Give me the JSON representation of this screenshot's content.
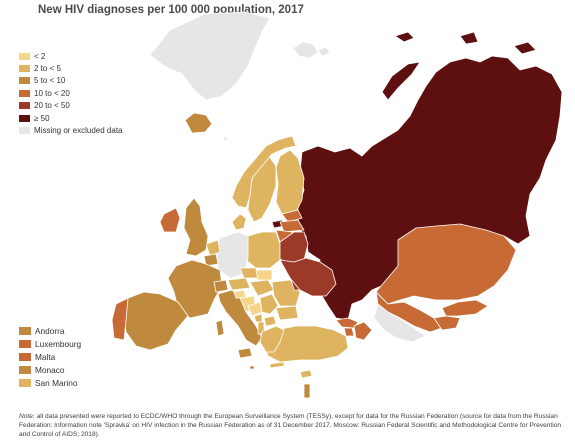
{
  "title": "New HIV diagnoses per 100 000 population, 2017",
  "legend": {
    "items": [
      {
        "label": "< 2",
        "color": "#f5d58a"
      },
      {
        "label": "2 to < 5",
        "color": "#deb461"
      },
      {
        "label": "5 to < 10",
        "color": "#c08a3e"
      },
      {
        "label": "10 to < 20",
        "color": "#c86a35"
      },
      {
        "label": "20 to < 50",
        "color": "#9c3a2a"
      },
      {
        "label": "≥ 50",
        "color": "#5e0f10"
      },
      {
        "label": "Missing or excluded data",
        "color": "#e6e6e6"
      }
    ]
  },
  "small_countries": [
    {
      "label": "Andorra",
      "color": "#c08a3e"
    },
    {
      "label": "Luxembourg",
      "color": "#c86a35"
    },
    {
      "label": "Malta",
      "color": "#c86a35"
    },
    {
      "label": "Monaco",
      "color": "#c08a3e"
    },
    {
      "label": "San Marino",
      "color": "#deb461"
    }
  ],
  "note": {
    "lead": "Note:",
    "text": " all data presented were reported to ECDC/WHO through the European Surveillance System (TESSy), except for data for the Russian Federation (source for data from the Russian Federation: Information note 'Spravka' on HIV infection in the Russian Federation as of 31 December 2017. Moscow: Russian Federal Scientific and Methodological Centre for Prevention and Control of AIDS; 2018)."
  }
}
